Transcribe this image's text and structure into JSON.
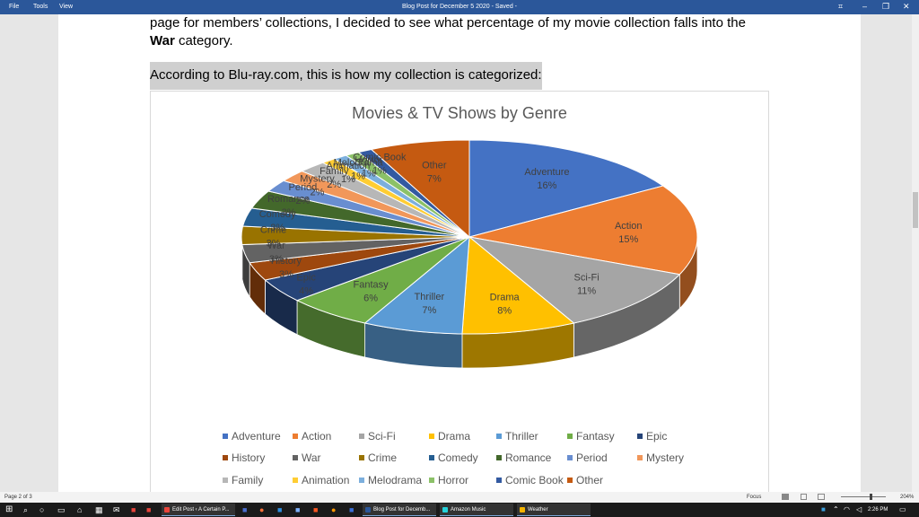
{
  "titlebar": {
    "menu": [
      "File",
      "Tools",
      "View"
    ],
    "doc_title": "Blog Post for December 5 2020  -  Saved  -",
    "controls": [
      "⌗",
      "–",
      "❐",
      "✕"
    ]
  },
  "document": {
    "line1": "page for members’ collections, I decided to see what percentage of my movie collection falls into the",
    "line2_bold": "War",
    "line2_rest": " category.",
    "highlight_line": "According to Blu-ray.com, this is how my collection is categorized:"
  },
  "chart_data": {
    "type": "pie",
    "title": "Movies & TV Shows by Genre",
    "categories": [
      "Adventure",
      "Action",
      "Sci-Fi",
      "Drama",
      "Thriller",
      "Fantasy",
      "Epic",
      "History",
      "War",
      "Crime",
      "Comedy",
      "Romance",
      "Period",
      "Mystery",
      "Family",
      "Animation",
      "Melodrama",
      "Horror",
      "Comic Book",
      "Other"
    ],
    "values": [
      16,
      15,
      11,
      8,
      7,
      6,
      4,
      3,
      3,
      3,
      3,
      3,
      2,
      2,
      2,
      1,
      1,
      1,
      1,
      7
    ],
    "labels": [
      "16%",
      "15%",
      "11%",
      "8%",
      "7%",
      "6%",
      "4%",
      "3%",
      "3%",
      "3%",
      "3%",
      "3%",
      "2%",
      "2%",
      "2%",
      "1%",
      "1%",
      "1%",
      "1%",
      "7%"
    ],
    "colors": [
      "#4472c4",
      "#ed7d31",
      "#a5a5a5",
      "#ffc000",
      "#5b9bd5",
      "#70ad47",
      "#264478",
      "#9e480e",
      "#636363",
      "#997300",
      "#255e91",
      "#43682b",
      "#698ed0",
      "#f1975a",
      "#b7b7b7",
      "#ffcd33",
      "#7cafdd",
      "#8cc168",
      "#335aa1",
      "#c55a11"
    ],
    "legend_position": "bottom",
    "style": "3d-pie"
  },
  "statusbar": {
    "page": "Page 2 of 3",
    "focus": "Focus",
    "zoom": "204%"
  },
  "taskbar": {
    "apps": [
      {
        "label": "Edit Post ‹ A Certain P...",
        "color": "#e8453c"
      },
      {
        "label": "Blog Post for Decemb...",
        "color": "#2b579a"
      },
      {
        "label": "Amazon Music",
        "color": "#25d1da"
      },
      {
        "label": "Weather",
        "color": "#f5b400"
      }
    ],
    "time": "2:26 PM"
  }
}
